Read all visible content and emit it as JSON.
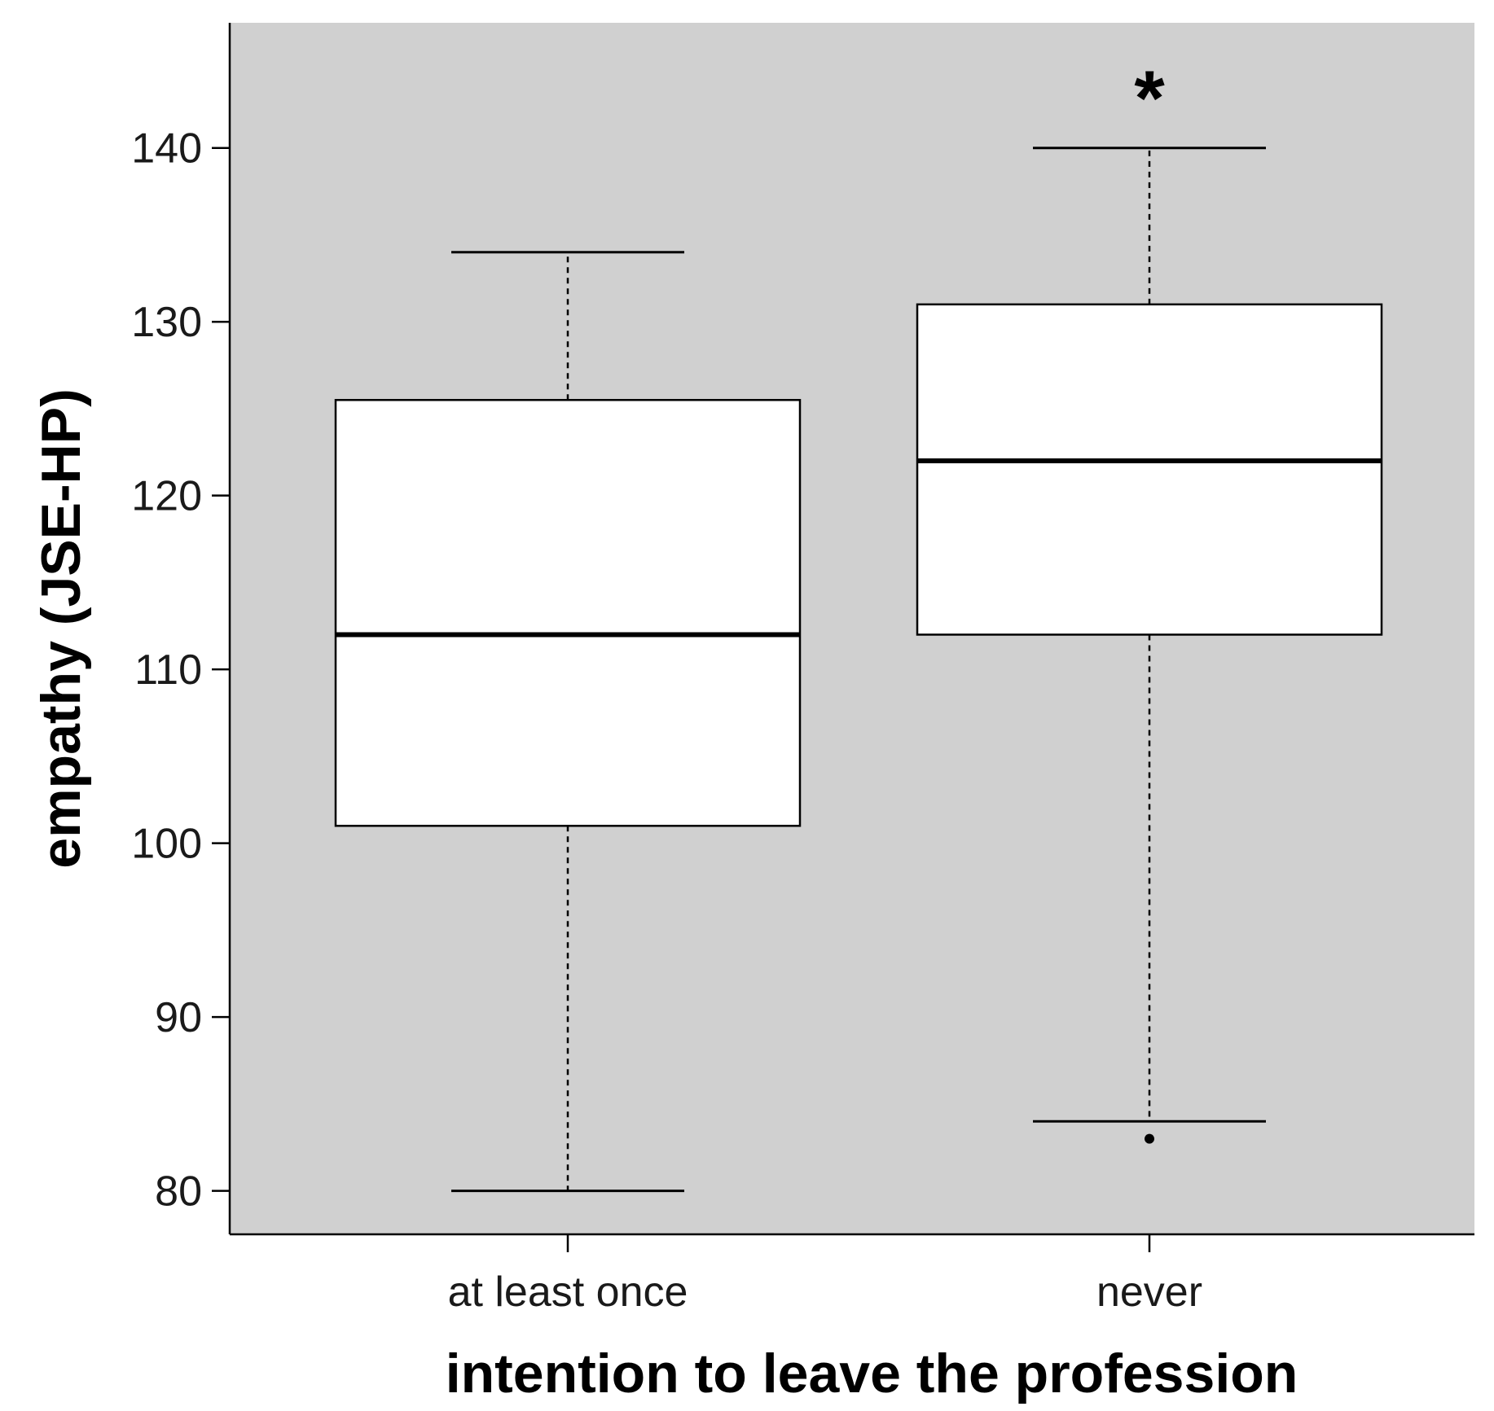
{
  "chart_data": {
    "type": "boxplot",
    "xlabel": "intention to leave the profession",
    "ylabel": "empathy (JSE-HP)",
    "categories": [
      "at least once",
      "never"
    ],
    "boxes": [
      {
        "category": "at least once",
        "whisker_low": 80,
        "q1": 101,
        "median": 112,
        "q3": 125.5,
        "whisker_high": 134,
        "outliers": []
      },
      {
        "category": "never",
        "whisker_low": 84,
        "q1": 112,
        "median": 122,
        "q3": 131,
        "whisker_high": 140,
        "outliers": [
          83
        ]
      }
    ],
    "ylim": [
      77.5,
      147.2
    ],
    "yticks": [
      80,
      90,
      100,
      110,
      120,
      130,
      140
    ],
    "ytick_labels": [
      "80",
      "90",
      "100",
      "110",
      "120",
      "130",
      "140"
    ],
    "annotations": [
      {
        "text": "*",
        "category": "never",
        "y": 143
      }
    ],
    "grid": false,
    "legend": "none",
    "colors": {
      "plot_background": "#d0d0d0",
      "box_fill": "#ffffff",
      "line": "#000000"
    }
  }
}
